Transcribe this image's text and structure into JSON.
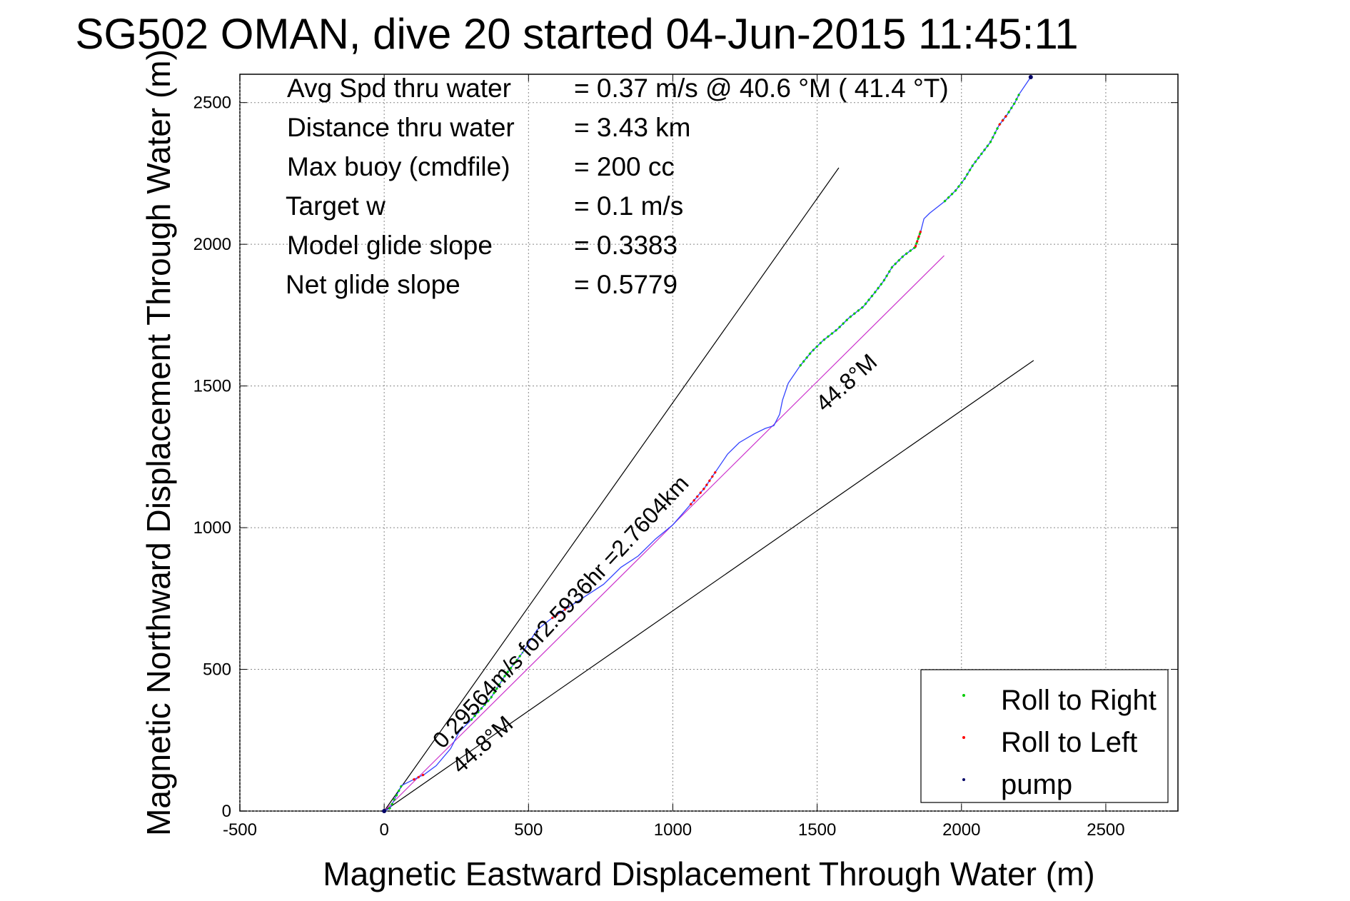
{
  "chart_data": {
    "type": "line",
    "title": "SG502 OMAN, dive 20 started 04-Jun-2015 11:45:11",
    "xlabel": "Magnetic Eastward Displacement Through Water (m)",
    "ylabel": "Magnetic Northward Displacement Through Water (m)",
    "xlim": [
      -500,
      2750
    ],
    "ylim": [
      0,
      2600
    ],
    "xticks": [
      -500,
      0,
      500,
      1000,
      1500,
      2000,
      2500
    ],
    "yticks": [
      0,
      500,
      1000,
      1500,
      2000,
      2500
    ],
    "grid": true,
    "legend_position": "bottom-right",
    "stats": [
      {
        "label": "Avg Spd thru water",
        "value": "=  0.37 m/s @  40.6 °M ( 41.4 °T)"
      },
      {
        "label": "Distance thru water",
        "value": "=  3.43 km"
      },
      {
        "label": "Max buoy (cmdfile)",
        "value": "= 200 cc"
      },
      {
        "label": "Target w",
        "value": "= 0.1 m/s"
      },
      {
        "label": "Model glide slope",
        "value": "= 0.3383"
      },
      {
        "label": "Net glide slope",
        "value": "= 0.5779"
      }
    ],
    "annotations": [
      {
        "text": "0.29564m/s for2.5936hr =2.7604km",
        "at": [
          250,
          190
        ]
      },
      {
        "text": "44.8°M",
        "at": [
          270,
          110
        ]
      },
      {
        "text": "44.8°M",
        "at": [
          1520,
          1430
        ]
      }
    ],
    "reference_lines": [
      {
        "name": "upper cone",
        "x": [
          0,
          1575
        ],
        "y": [
          0,
          2270
        ],
        "color": "#000000"
      },
      {
        "name": "lower cone",
        "x": [
          0,
          2250
        ],
        "y": [
          0,
          1590
        ],
        "color": "#000000"
      },
      {
        "name": "net track",
        "x": [
          0,
          1940
        ],
        "y": [
          0,
          1960
        ],
        "color": "#cc33cc"
      }
    ],
    "series": [
      {
        "name": "track",
        "color": "#3344ff",
        "x": [
          0,
          20,
          45,
          60,
          100,
          140,
          180,
          230,
          260,
          300,
          370,
          420,
          480,
          530,
          580,
          640,
          700,
          760,
          820,
          880,
          940,
          1000,
          1060,
          1110,
          1150,
          1190,
          1230,
          1280,
          1320,
          1350,
          1370,
          1380,
          1400,
          1440,
          1480,
          1520,
          1570,
          1610,
          1660,
          1700,
          1730,
          1760,
          1800,
          1840,
          1860,
          1870,
          1890,
          1940,
          1980,
          2010,
          2040,
          2070,
          2100,
          2130,
          2160,
          2185,
          2200,
          2220,
          2240
        ],
        "y": [
          0,
          10,
          60,
          90,
          110,
          130,
          160,
          220,
          280,
          320,
          400,
          480,
          560,
          640,
          680,
          720,
          760,
          800,
          860,
          900,
          960,
          1010,
          1080,
          1140,
          1200,
          1260,
          1300,
          1330,
          1350,
          1360,
          1400,
          1450,
          1510,
          1570,
          1620,
          1660,
          1700,
          1740,
          1780,
          1830,
          1870,
          1920,
          1960,
          1990,
          2050,
          2090,
          2110,
          2150,
          2190,
          2230,
          2280,
          2320,
          2360,
          2420,
          2460,
          2500,
          2530,
          2560,
          2590
        ]
      }
    ],
    "legend": [
      {
        "label": "Roll to Right",
        "color": "#00cc00"
      },
      {
        "label": "Roll to Left",
        "color": "#ff0000"
      },
      {
        "label": "pump",
        "color": "#000066"
      }
    ],
    "roll_right_ranges": [
      [
        0,
        3
      ],
      [
        9,
        12
      ],
      [
        33,
        44
      ],
      [
        47,
        56
      ]
    ],
    "roll_left_ranges": [
      [
        4,
        5
      ],
      [
        14,
        15
      ],
      [
        22,
        24
      ],
      [
        43,
        44
      ],
      [
        53,
        54
      ]
    ],
    "pump_points": [
      0,
      58
    ]
  }
}
